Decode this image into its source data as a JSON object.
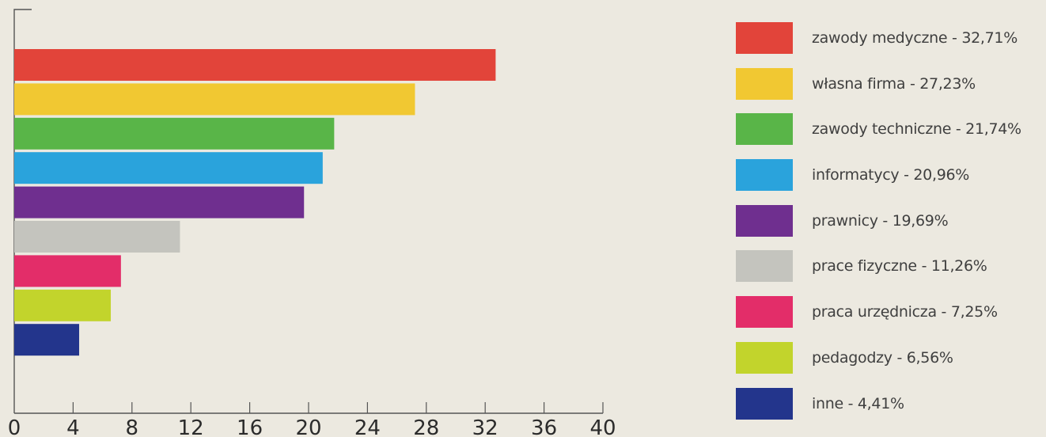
{
  "chart_data": {
    "type": "bar",
    "orientation": "horizontal",
    "categories": [
      "zawody medyczne",
      "własna firma",
      "zawody techniczne",
      "informatycy",
      "prawnicy",
      "prace fizyczne",
      "praca urzędnicza",
      "pedagodzy",
      "inne"
    ],
    "values": [
      32.71,
      27.23,
      21.74,
      20.96,
      19.69,
      11.26,
      7.25,
      6.56,
      4.41
    ],
    "colors": [
      "#e2443a",
      "#f1c832",
      "#59b548",
      "#2aa3dc",
      "#6f2f8f",
      "#c4c4be",
      "#e32d69",
      "#c2d42c",
      "#23358c"
    ],
    "xlim": [
      0,
      40
    ],
    "x_ticks": [
      "0",
      "4",
      "8",
      "12",
      "16",
      "20",
      "24",
      "28",
      "32",
      "36",
      "40"
    ],
    "legend": {
      "placement": "right",
      "entries": [
        "zawody medyczne - 32,71%",
        "własna firma - 27,23%",
        "zawody techniczne - 21,74%",
        "informatycy - 20,96%",
        "prawnicy - 19,69%",
        "prace fizyczne - 11,26%",
        "praca urzędnicza - 7,25%",
        "pedagodzy - 6,56%",
        "inne - 4,41%"
      ]
    },
    "grid": false
  }
}
